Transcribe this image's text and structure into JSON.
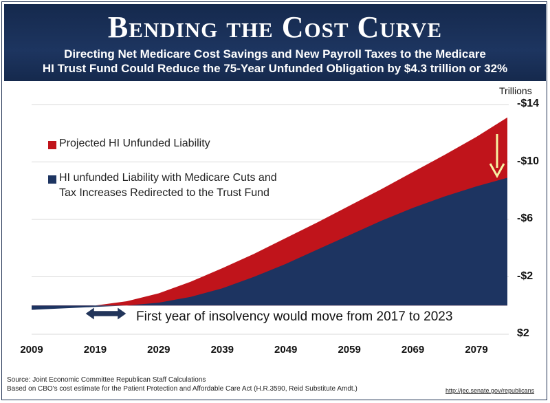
{
  "title": "Bending the Cost Curve",
  "subtitle_line1": "Directing Net Medicare Cost Savings and New Payroll Taxes to the Medicare",
  "subtitle_line2": "HI Trust Fund Could Reduce the 75-Year Unfunded Obligation by $4.3 trillion or 32%",
  "unit_label": "Trillions",
  "annotation": "First year of insolvency would move from 2017 to 2023",
  "source_line1": "Source: Joint Economic Committee Republican Staff Calculations",
  "source_line2": "Based on CBO's cost estimate for the Patient Protection and Affordable Care Act (H.R.3590, Reid Substitute Amdt.)",
  "link_text": "http://jec.senate.gov/republicans",
  "colors": {
    "header": "#1b2d4f",
    "projected": "#c0141b",
    "with_cuts": "#1d3461",
    "arrow": "#f7f3a3"
  },
  "chart_data": {
    "type": "area",
    "x_ticks": [
      "2009",
      "2019",
      "2029",
      "2039",
      "2049",
      "2059",
      "2069",
      "2079"
    ],
    "y_ticks": [
      "-$14",
      "-$10",
      "-$6",
      "-$2",
      "$2"
    ],
    "y_tick_values": [
      -14,
      -10,
      -6,
      -2,
      2
    ],
    "ylim": [
      2,
      -14
    ],
    "xlim": [
      2009,
      2084
    ],
    "x": [
      2009,
      2014,
      2019,
      2024,
      2029,
      2034,
      2039,
      2044,
      2049,
      2054,
      2059,
      2064,
      2069,
      2074,
      2079,
      2084
    ],
    "series": [
      {
        "name": "Projected HI Unfunded Liability",
        "color": "#c0141b",
        "values": [
          0.3,
          0.15,
          0,
          -0.3,
          -0.85,
          -1.65,
          -2.6,
          -3.6,
          -4.7,
          -5.8,
          -6.95,
          -8.1,
          -9.3,
          -10.5,
          -11.75,
          -13.1
        ]
      },
      {
        "name": "HI unfunded Liability with Medicare Cuts and Tax Increases Redirected to the Trust Fund",
        "color": "#1d3461",
        "values": [
          0.3,
          0.2,
          0.1,
          0,
          -0.2,
          -0.6,
          -1.2,
          -2.0,
          -2.9,
          -3.9,
          -4.9,
          -5.9,
          -6.8,
          -7.6,
          -8.3,
          -8.9
        ]
      }
    ],
    "legend": [
      {
        "label": "Projected HI Unfunded Liability",
        "color": "#c0141b"
      },
      {
        "label": "HI unfunded Liability with Medicare Cuts and",
        "label2": "Tax Increases Redirected to the Trust Fund",
        "color": "#1d3461"
      }
    ]
  }
}
